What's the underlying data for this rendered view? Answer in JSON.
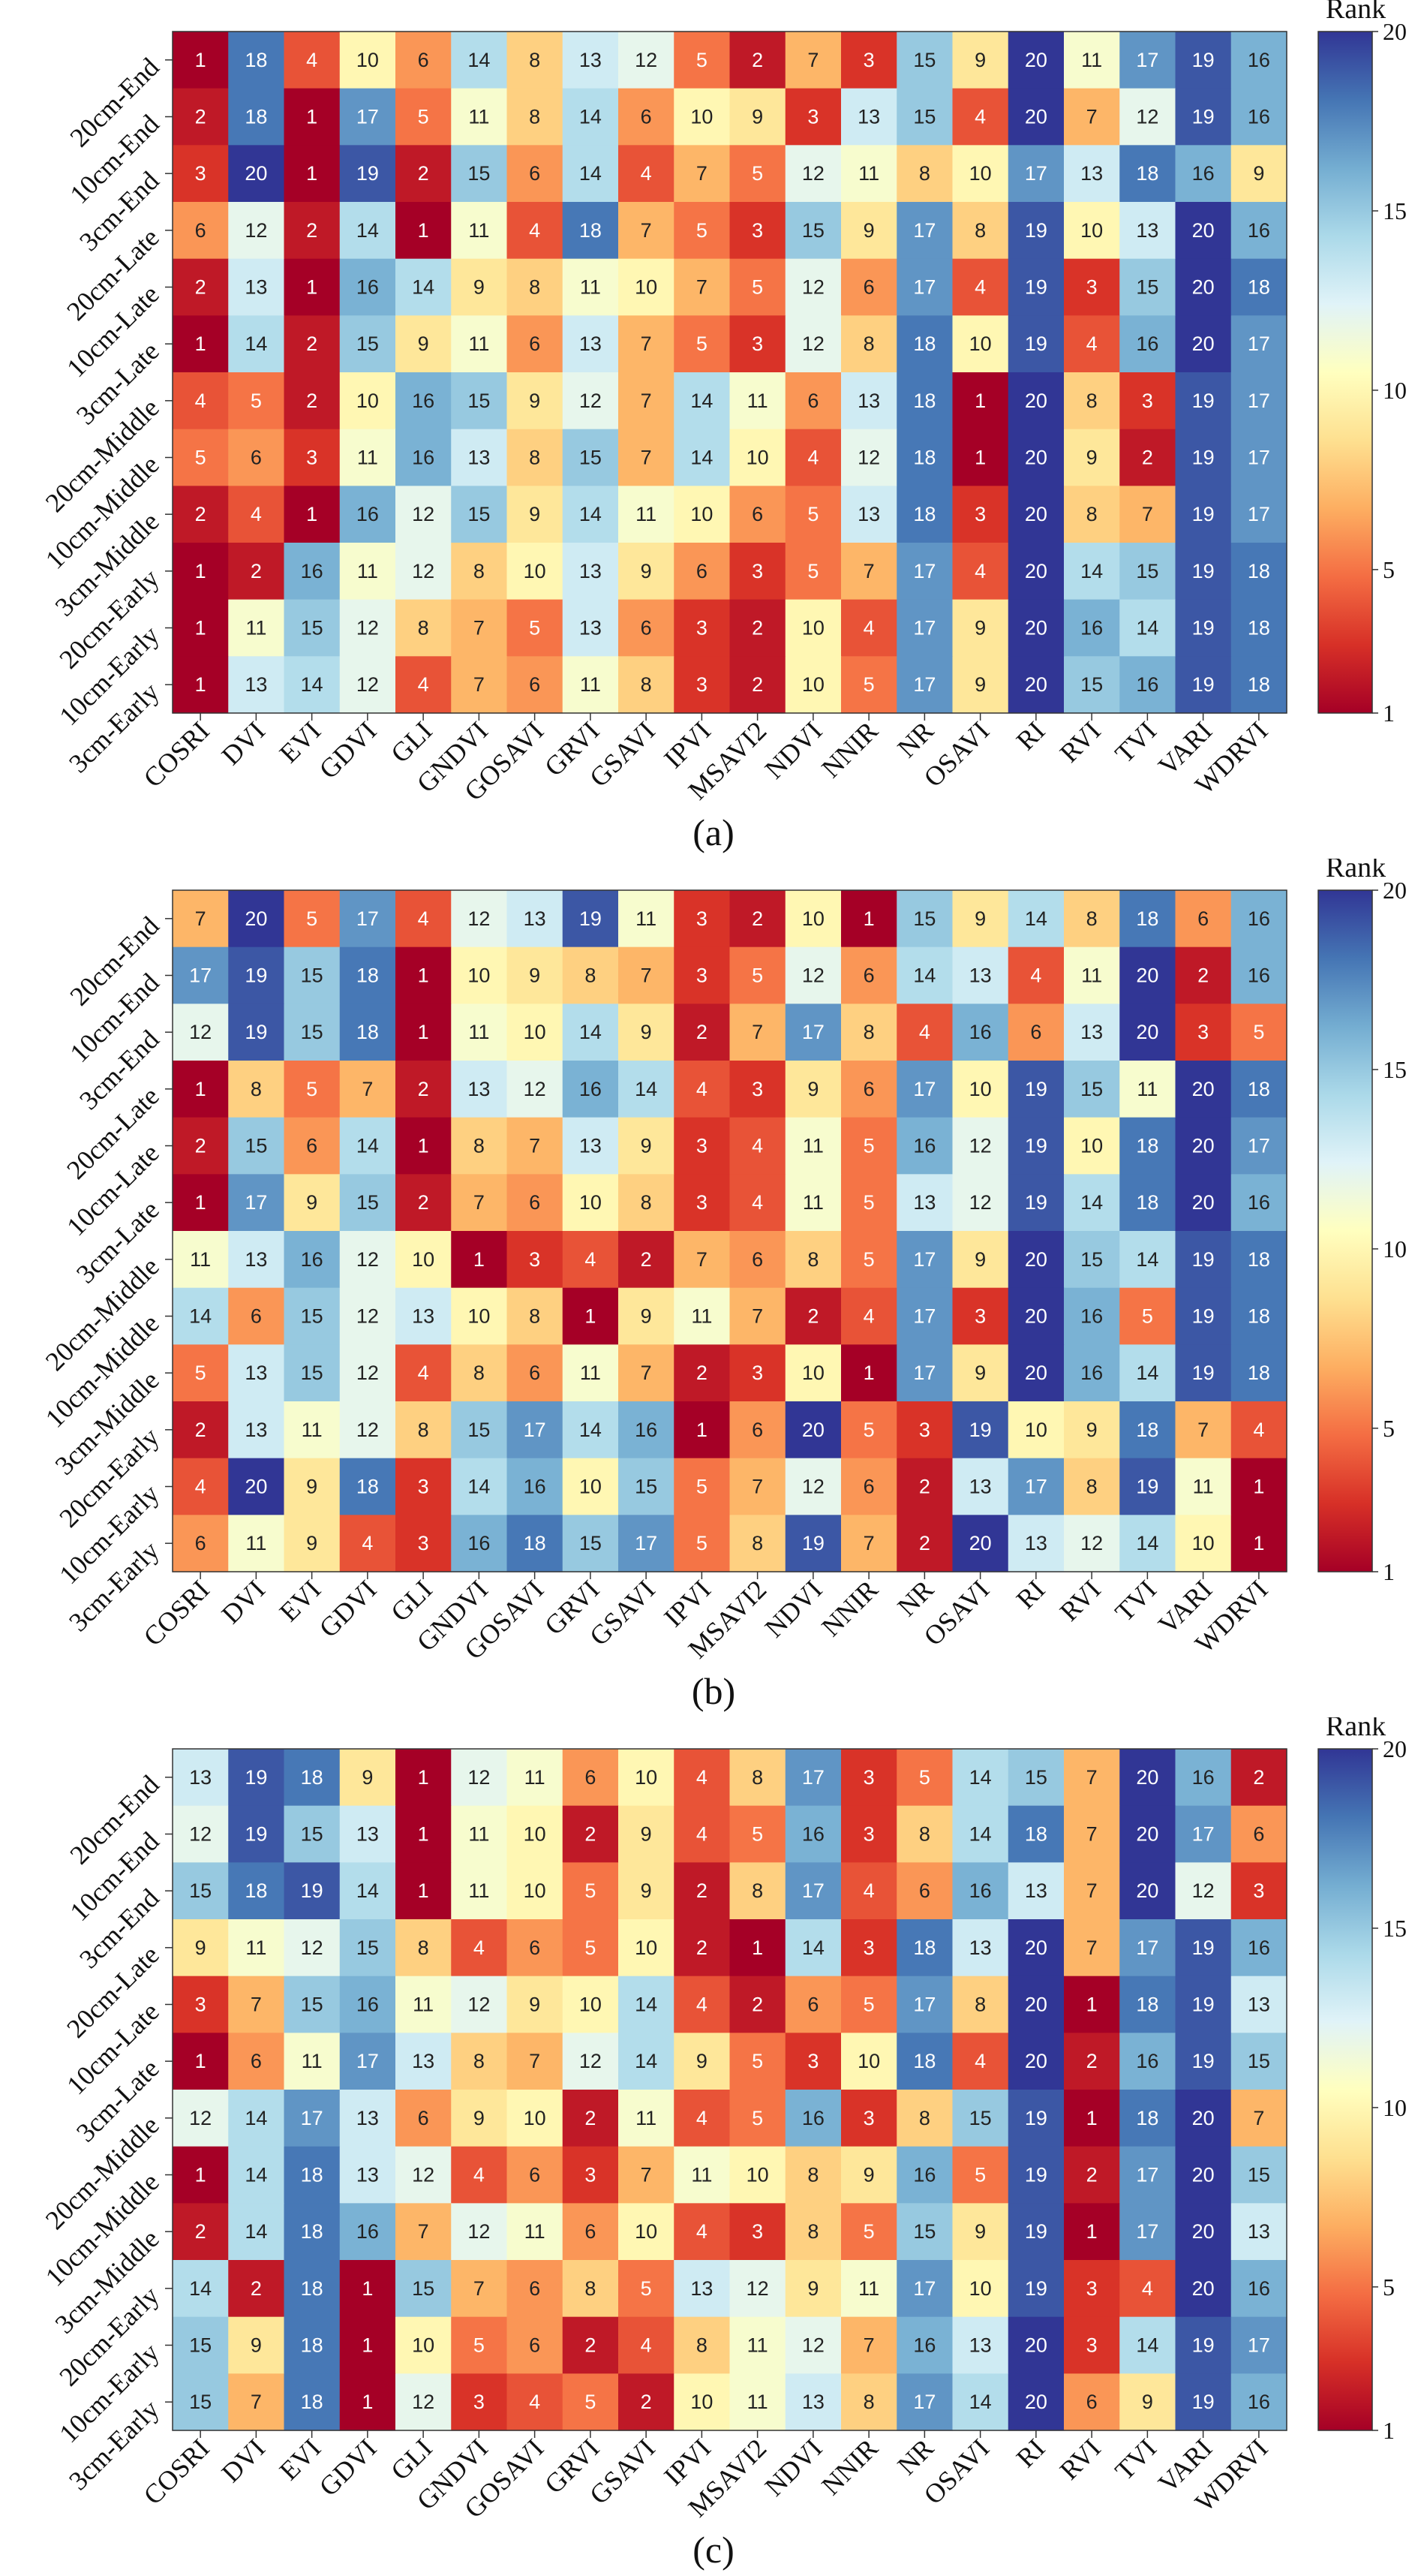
{
  "colorbar": {
    "title": "Rank",
    "ticks": [
      1,
      5,
      10,
      15,
      20
    ],
    "range": [
      1,
      20
    ],
    "colors": [
      "#a50026",
      "#d73027",
      "#f46d43",
      "#fdae61",
      "#fee090",
      "#ffffbf",
      "#e0f3f8",
      "#abd9e9",
      "#74add1",
      "#4575b4",
      "#313695"
    ]
  },
  "chart_data": [
    {
      "type": "heatmap",
      "label": "(a)",
      "x_categories": [
        "COSRI",
        "DVI",
        "EVI",
        "GDVI",
        "GLI",
        "GNDVI",
        "GOSAVI",
        "GRVI",
        "GSAVI",
        "IPVI",
        "MSAVI2",
        "NDVI",
        "NNIR",
        "NR",
        "OSAVI",
        "RI",
        "RVI",
        "TVI",
        "VARI",
        "WDRVI"
      ],
      "y_categories": [
        "20cm-End",
        "10cm-End",
        "3cm-End",
        "20cm-Late",
        "10cm-Late",
        "3cm-Late",
        "20cm-Middle",
        "10cm-Middle",
        "3cm-Middle",
        "20cm-Early",
        "10cm-Early",
        "3cm-Early"
      ],
      "values": [
        [
          1,
          18,
          4,
          10,
          6,
          14,
          8,
          13,
          12,
          5,
          2,
          7,
          3,
          15,
          9,
          20,
          11,
          17,
          19,
          16
        ],
        [
          2,
          18,
          1,
          17,
          5,
          11,
          8,
          14,
          6,
          10,
          9,
          3,
          13,
          15,
          4,
          20,
          7,
          12,
          19,
          16
        ],
        [
          3,
          20,
          1,
          19,
          2,
          15,
          6,
          14,
          4,
          7,
          5,
          12,
          11,
          8,
          10,
          17,
          13,
          18,
          16,
          9
        ],
        [
          6,
          12,
          2,
          14,
          1,
          11,
          4,
          18,
          7,
          5,
          3,
          15,
          9,
          17,
          8,
          19,
          10,
          13,
          20,
          16
        ],
        [
          2,
          13,
          1,
          16,
          14,
          9,
          8,
          11,
          10,
          7,
          5,
          12,
          6,
          17,
          4,
          19,
          3,
          15,
          20,
          18
        ],
        [
          1,
          14,
          2,
          15,
          9,
          11,
          6,
          13,
          7,
          5,
          3,
          12,
          8,
          18,
          10,
          19,
          4,
          16,
          20,
          17
        ],
        [
          4,
          5,
          2,
          10,
          16,
          15,
          9,
          12,
          7,
          14,
          11,
          6,
          13,
          18,
          1,
          20,
          8,
          3,
          19,
          17
        ],
        [
          5,
          6,
          3,
          11,
          16,
          13,
          8,
          15,
          7,
          14,
          10,
          4,
          12,
          18,
          1,
          20,
          9,
          2,
          19,
          17
        ],
        [
          2,
          4,
          1,
          16,
          12,
          15,
          9,
          14,
          11,
          10,
          6,
          5,
          13,
          18,
          3,
          20,
          8,
          7,
          19,
          17
        ],
        [
          1,
          2,
          16,
          11,
          12,
          8,
          10,
          13,
          9,
          6,
          3,
          5,
          7,
          17,
          4,
          20,
          14,
          15,
          19,
          18
        ],
        [
          1,
          11,
          15,
          12,
          8,
          7,
          5,
          13,
          6,
          3,
          2,
          10,
          4,
          17,
          9,
          20,
          16,
          14,
          19,
          18
        ],
        [
          1,
          13,
          14,
          12,
          4,
          7,
          6,
          11,
          8,
          3,
          2,
          10,
          5,
          17,
          9,
          20,
          15,
          16,
          19,
          18
        ]
      ]
    },
    {
      "type": "heatmap",
      "label": "(b)",
      "x_categories": [
        "COSRI",
        "DVI",
        "EVI",
        "GDVI",
        "GLI",
        "GNDVI",
        "GOSAVI",
        "GRVI",
        "GSAVI",
        "IPVI",
        "MSAVI2",
        "NDVI",
        "NNIR",
        "NR",
        "OSAVI",
        "RI",
        "RVI",
        "TVI",
        "VARI",
        "WDRVI"
      ],
      "y_categories": [
        "20cm-End",
        "10cm-End",
        "3cm-End",
        "20cm-Late",
        "10cm-Late",
        "3cm-Late",
        "20cm-Middle",
        "10cm-Middle",
        "3cm-Middle",
        "20cm-Early",
        "10cm-Early",
        "3cm-Early"
      ],
      "values": [
        [
          7,
          20,
          5,
          17,
          4,
          12,
          13,
          19,
          11,
          3,
          2,
          10,
          1,
          15,
          9,
          14,
          8,
          18,
          6,
          16
        ],
        [
          17,
          19,
          15,
          18,
          1,
          10,
          9,
          8,
          7,
          3,
          5,
          12,
          6,
          14,
          13,
          4,
          11,
          20,
          2,
          16
        ],
        [
          12,
          19,
          15,
          18,
          1,
          11,
          10,
          14,
          9,
          2,
          7,
          17,
          8,
          4,
          16,
          6,
          13,
          20,
          3,
          5
        ],
        [
          1,
          8,
          5,
          7,
          2,
          13,
          12,
          16,
          14,
          4,
          3,
          9,
          6,
          17,
          10,
          19,
          15,
          11,
          20,
          18
        ],
        [
          2,
          15,
          6,
          14,
          1,
          8,
          7,
          13,
          9,
          3,
          4,
          11,
          5,
          16,
          12,
          19,
          10,
          18,
          20,
          17
        ],
        [
          1,
          17,
          9,
          15,
          2,
          7,
          6,
          10,
          8,
          3,
          4,
          11,
          5,
          13,
          12,
          19,
          14,
          18,
          20,
          16
        ],
        [
          11,
          13,
          16,
          12,
          10,
          1,
          3,
          4,
          2,
          7,
          6,
          8,
          5,
          17,
          9,
          20,
          15,
          14,
          19,
          18
        ],
        [
          14,
          6,
          15,
          12,
          13,
          10,
          8,
          1,
          9,
          11,
          7,
          2,
          4,
          17,
          3,
          20,
          16,
          5,
          19,
          18
        ],
        [
          5,
          13,
          15,
          12,
          4,
          8,
          6,
          11,
          7,
          2,
          3,
          10,
          1,
          17,
          9,
          20,
          16,
          14,
          19,
          18
        ],
        [
          2,
          13,
          11,
          12,
          8,
          15,
          17,
          14,
          16,
          1,
          6,
          20,
          5,
          3,
          19,
          10,
          9,
          18,
          7,
          4
        ],
        [
          4,
          20,
          9,
          18,
          3,
          14,
          16,
          10,
          15,
          5,
          7,
          12,
          6,
          2,
          13,
          17,
          8,
          19,
          11,
          1
        ],
        [
          6,
          11,
          9,
          4,
          3,
          16,
          18,
          15,
          17,
          5,
          8,
          19,
          7,
          2,
          20,
          13,
          12,
          14,
          10,
          1
        ]
      ]
    },
    {
      "type": "heatmap",
      "label": "(c)",
      "x_categories": [
        "COSRI",
        "DVI",
        "EVI",
        "GDVI",
        "GLI",
        "GNDVI",
        "GOSAVI",
        "GRVI",
        "GSAVI",
        "IPVI",
        "MSAVI2",
        "NDVI",
        "NNIR",
        "NR",
        "OSAVI",
        "RI",
        "RVI",
        "TVI",
        "VARI",
        "WDRVI"
      ],
      "y_categories": [
        "20cm-End",
        "10cm-End",
        "3cm-End",
        "20cm-Late",
        "10cm-Late",
        "3cm-Late",
        "20cm-Middle",
        "10cm-Middle",
        "3cm-Middle",
        "20cm-Early",
        "10cm-Early",
        "3cm-Early"
      ],
      "values": [
        [
          13,
          19,
          18,
          9,
          1,
          12,
          11,
          6,
          10,
          4,
          8,
          17,
          3,
          5,
          14,
          15,
          7,
          20,
          16,
          2
        ],
        [
          12,
          19,
          15,
          13,
          1,
          11,
          10,
          2,
          9,
          4,
          5,
          16,
          3,
          8,
          14,
          18,
          7,
          20,
          17,
          6
        ],
        [
          15,
          18,
          19,
          14,
          1,
          11,
          10,
          5,
          9,
          2,
          8,
          17,
          4,
          6,
          16,
          13,
          7,
          20,
          12,
          3
        ],
        [
          9,
          11,
          12,
          15,
          8,
          4,
          6,
          5,
          10,
          2,
          1,
          14,
          3,
          18,
          13,
          20,
          7,
          17,
          19,
          16
        ],
        [
          3,
          7,
          15,
          16,
          11,
          12,
          9,
          10,
          14,
          4,
          2,
          6,
          5,
          17,
          8,
          20,
          1,
          18,
          19,
          13
        ],
        [
          1,
          6,
          11,
          17,
          13,
          8,
          7,
          12,
          14,
          9,
          5,
          3,
          10,
          18,
          4,
          20,
          2,
          16,
          19,
          15
        ],
        [
          12,
          14,
          17,
          13,
          6,
          9,
          10,
          2,
          11,
          4,
          5,
          16,
          3,
          8,
          15,
          19,
          1,
          18,
          20,
          7
        ],
        [
          1,
          14,
          18,
          13,
          12,
          4,
          6,
          3,
          7,
          11,
          10,
          8,
          9,
          16,
          5,
          19,
          2,
          17,
          20,
          15
        ],
        [
          2,
          14,
          18,
          16,
          7,
          12,
          11,
          6,
          10,
          4,
          3,
          8,
          5,
          15,
          9,
          19,
          1,
          17,
          20,
          13
        ],
        [
          14,
          2,
          18,
          1,
          15,
          7,
          6,
          8,
          5,
          13,
          12,
          9,
          11,
          17,
          10,
          19,
          3,
          4,
          20,
          16
        ],
        [
          15,
          9,
          18,
          1,
          10,
          5,
          6,
          2,
          4,
          8,
          11,
          12,
          7,
          16,
          13,
          20,
          3,
          14,
          19,
          17
        ],
        [
          15,
          7,
          18,
          1,
          12,
          3,
          4,
          5,
          2,
          10,
          11,
          13,
          8,
          17,
          14,
          20,
          6,
          9,
          19,
          16
        ]
      ]
    }
  ]
}
